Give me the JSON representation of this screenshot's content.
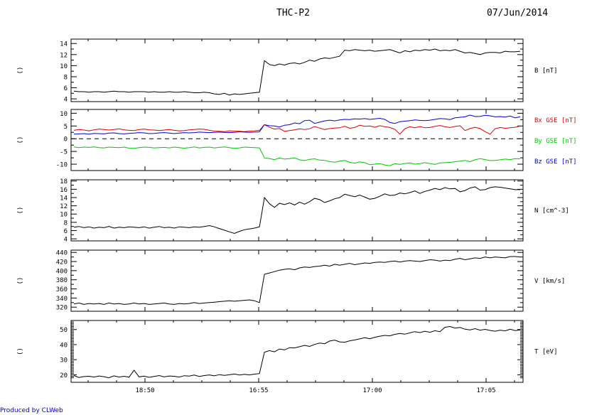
{
  "header": {
    "spacecraft": "THC-P2",
    "date": "07/Jun/2014"
  },
  "footer": {
    "credit": "Produced by CLWeb"
  },
  "colors": {
    "black": "#000000",
    "red": "#e00000",
    "green": "#00c800",
    "blue": "#0000e0",
    "credit": "#0000c0"
  },
  "x_axis": {
    "tick_labels": [
      "18:50",
      "16:55",
      "17:00",
      "17:05"
    ]
  },
  "chart_data": [
    {
      "type": "line",
      "ylabel": "B [nT]",
      "ylim": [
        3.5,
        14.8
      ],
      "yticks": [
        4,
        6,
        8,
        10,
        12,
        14
      ],
      "yticks_minor": [
        5,
        7,
        9,
        11,
        13
      ],
      "y_left_mark": "()",
      "series": [
        {
          "color": "#000000",
          "y": [
            5.4,
            5.3,
            5.3,
            5.2,
            5.3,
            5.3,
            5.2,
            5.3,
            5.4,
            5.3,
            5.3,
            5.2,
            5.3,
            5.3,
            5.3,
            5.2,
            5.3,
            5.2,
            5.2,
            5.3,
            5.2,
            5.2,
            5.3,
            5.2,
            5.1,
            5.1,
            5.2,
            5.1,
            4.9,
            4.8,
            5.0,
            4.7,
            4.9,
            4.8,
            4.9,
            5.0,
            5.1,
            5.2,
            10.9,
            10.2,
            10.0,
            10.3,
            10.1,
            10.4,
            10.5,
            10.3,
            10.6,
            11.0,
            10.8,
            11.2,
            11.4,
            11.3,
            11.5,
            11.7,
            12.8,
            12.7,
            12.9,
            12.8,
            12.7,
            12.8,
            12.6,
            12.7,
            12.8,
            12.9,
            12.6,
            12.3,
            12.7,
            12.5,
            12.8,
            12.7,
            12.9,
            12.8,
            13.0,
            12.7,
            12.8,
            12.7,
            12.9,
            12.6,
            12.3,
            12.4,
            12.2,
            12.0,
            12.3,
            12.4,
            12.4,
            12.3,
            12.6,
            12.5,
            12.5,
            12.6
          ]
        }
      ]
    },
    {
      "type": "line",
      "ylim": [
        -12.5,
        11.5
      ],
      "yticks": [
        -10,
        -5,
        0,
        5,
        10
      ],
      "yticks_minor": [
        -7.5,
        -2.5,
        2.5,
        7.5
      ],
      "zero_line": true,
      "y_left_mark": "()",
      "series": [
        {
          "name": "Bx GSE [nT]",
          "color": "#e00000",
          "y": [
            3.3,
            3.6,
            3.4,
            3.1,
            3.5,
            3.8,
            3.6,
            3.4,
            3.6,
            3.9,
            3.5,
            3.3,
            3.2,
            3.6,
            3.8,
            3.5,
            3.4,
            3.2,
            3.4,
            3.6,
            3.3,
            3.1,
            3.2,
            3.5,
            3.6,
            3.8,
            3.7,
            3.3,
            3.0,
            2.9,
            2.8,
            3.1,
            3.0,
            2.9,
            2.8,
            3.0,
            3.1,
            3.3,
            5.5,
            4.5,
            3.8,
            4.0,
            2.9,
            3.2,
            3.5,
            3.9,
            3.6,
            3.9,
            4.8,
            4.2,
            3.6,
            4.0,
            4.2,
            4.3,
            4.9,
            4.1,
            4.4,
            5.3,
            4.9,
            5.0,
            4.5,
            5.1,
            4.7,
            4.4,
            3.7,
            1.8,
            3.9,
            4.7,
            4.3,
            4.8,
            4.3,
            4.4,
            4.9,
            5.2,
            4.7,
            4.4,
            4.8,
            5.1,
            3.2,
            4.0,
            4.5,
            4.0,
            2.8,
            1.8,
            3.9,
            4.4,
            4.1,
            4.3,
            4.5,
            5.0
          ]
        },
        {
          "name": "By GSE [nT]",
          "color": "#00c800",
          "y": [
            -3.2,
            -3.5,
            -3.3,
            -3.4,
            -3.2,
            -3.5,
            -3.6,
            -3.3,
            -3.4,
            -3.5,
            -3.3,
            -3.7,
            -3.8,
            -3.5,
            -3.3,
            -3.4,
            -3.6,
            -3.5,
            -3.4,
            -3.6,
            -3.3,
            -3.5,
            -3.7,
            -3.5,
            -3.2,
            -3.6,
            -3.4,
            -3.3,
            -3.6,
            -3.4,
            -3.2,
            -3.5,
            -3.8,
            -3.6,
            -3.3,
            -3.4,
            -3.5,
            -3.6,
            -7.5,
            -7.8,
            -8.2,
            -7.6,
            -8.0,
            -7.8,
            -7.5,
            -8.3,
            -8.6,
            -8.1,
            -7.9,
            -8.4,
            -8.5,
            -9.0,
            -9.2,
            -8.8,
            -8.5,
            -9.3,
            -9.6,
            -9.1,
            -9.4,
            -10.2,
            -10.0,
            -9.8,
            -10.3,
            -10.6,
            -9.8,
            -10.1,
            -9.7,
            -9.5,
            -10.0,
            -9.8,
            -9.4,
            -9.8,
            -10.1,
            -9.5,
            -9.4,
            -9.3,
            -9.0,
            -8.8,
            -8.5,
            -9.0,
            -8.3,
            -7.8,
            -8.2,
            -8.6,
            -8.5,
            -8.3,
            -8.0,
            -8.2,
            -7.8,
            -7.9
          ]
        },
        {
          "name": "Bz GSE [nT]",
          "color": "#0000e0",
          "y": [
            1.8,
            1.9,
            2.0,
            1.8,
            2.1,
            2.0,
            1.9,
            2.2,
            2.3,
            2.0,
            1.9,
            2.1,
            2.2,
            2.4,
            2.3,
            2.0,
            2.1,
            2.3,
            2.4,
            2.2,
            2.0,
            2.2,
            2.4,
            2.3,
            2.4,
            2.6,
            2.5,
            2.4,
            2.5,
            2.6,
            2.5,
            2.4,
            2.5,
            2.7,
            2.6,
            2.5,
            2.6,
            2.7,
            5.5,
            5.1,
            5.0,
            4.6,
            5.3,
            5.5,
            6.2,
            5.9,
            7.1,
            7.3,
            6.0,
            6.5,
            7.0,
            7.3,
            7.0,
            7.4,
            7.6,
            7.5,
            7.8,
            7.7,
            7.9,
            7.6,
            7.8,
            8.0,
            7.6,
            6.4,
            6.0,
            6.7,
            6.9,
            7.1,
            7.4,
            7.2,
            7.1,
            7.3,
            7.6,
            7.9,
            7.8,
            7.5,
            8.2,
            8.4,
            8.6,
            9.3,
            8.7,
            8.8,
            9.2,
            9.0,
            8.6,
            8.7,
            8.5,
            8.9,
            8.2,
            8.6
          ]
        }
      ]
    },
    {
      "type": "line",
      "ylabel": "N [cm^-3]",
      "ylim": [
        3.5,
        18.3
      ],
      "yticks": [
        4,
        6,
        8,
        10,
        12,
        14,
        16,
        18
      ],
      "yticks_minor": [
        5,
        7,
        9,
        11,
        13,
        15,
        17
      ],
      "y_left_mark": "()",
      "series": [
        {
          "color": "#000000",
          "y": [
            6.8,
            7.0,
            6.7,
            6.9,
            6.6,
            6.8,
            6.7,
            7.0,
            6.6,
            6.8,
            6.7,
            6.9,
            6.8,
            6.7,
            6.9,
            6.6,
            6.8,
            7.0,
            6.7,
            6.8,
            6.6,
            6.9,
            6.8,
            6.7,
            6.9,
            6.8,
            7.0,
            7.2,
            6.9,
            6.5,
            6.1,
            5.7,
            5.3,
            5.8,
            6.2,
            6.4,
            6.6,
            6.9,
            14.0,
            12.5,
            11.6,
            12.6,
            12.3,
            12.7,
            12.2,
            12.9,
            12.4,
            13.0,
            13.8,
            13.5,
            12.8,
            13.2,
            13.7,
            14.0,
            14.8,
            14.5,
            14.2,
            14.6,
            14.1,
            13.6,
            13.8,
            14.3,
            14.9,
            14.5,
            14.6,
            15.1,
            14.9,
            15.2,
            15.6,
            15.0,
            15.5,
            15.8,
            16.2,
            15.9,
            16.4,
            16.1,
            16.2,
            15.4,
            15.7,
            16.3,
            16.6,
            15.8,
            15.9,
            16.4,
            16.6,
            16.5,
            16.3,
            16.1,
            15.9,
            15.9
          ]
        }
      ]
    },
    {
      "type": "line",
      "ylabel": "V [km/s]",
      "ylim": [
        311,
        445
      ],
      "yticks": [
        320,
        340,
        360,
        380,
        400,
        420,
        440
      ],
      "yticks_minor": [
        330,
        350,
        370,
        390,
        410,
        430
      ],
      "y_left_mark": "()",
      "series": [
        {
          "color": "#000000",
          "y": [
            327,
            329,
            326,
            328,
            327,
            328,
            326,
            329,
            327,
            328,
            326,
            327,
            329,
            327,
            328,
            326,
            327,
            328,
            329,
            327,
            326,
            328,
            327,
            328,
            330,
            328,
            329,
            330,
            331,
            332,
            333,
            334,
            333,
            334,
            335,
            336,
            334,
            330,
            392,
            395,
            398,
            401,
            403,
            404,
            402,
            406,
            408,
            407,
            409,
            410,
            412,
            410,
            414,
            412,
            414,
            416,
            413,
            415,
            417,
            416,
            418,
            419,
            418,
            420,
            421,
            419,
            421,
            422,
            421,
            420,
            422,
            424,
            423,
            421,
            423,
            422,
            425,
            427,
            424,
            426,
            428,
            427,
            430,
            428,
            430,
            429,
            428,
            431,
            431,
            430
          ]
        }
      ]
    },
    {
      "type": "line",
      "ylabel": "T [eV]",
      "ylim": [
        15,
        56
      ],
      "yticks": [
        20,
        30,
        40,
        50
      ],
      "yticks_minor": [
        18,
        19,
        21,
        22,
        23,
        24,
        25,
        26,
        27,
        28,
        29,
        31,
        32,
        33,
        34,
        35,
        36,
        37,
        38,
        39,
        41,
        42,
        43,
        44,
        45,
        46,
        47,
        48,
        49,
        51,
        52,
        53,
        54,
        55
      ],
      "y_left_mark": "()",
      "series": [
        {
          "color": "#000000",
          "y": [
            19.5,
            18.2,
            18.8,
            19.0,
            18.5,
            19.2,
            18.7,
            18.0,
            19.3,
            18.5,
            19.0,
            18.4,
            23.0,
            18.6,
            19.1,
            18.3,
            18.9,
            19.5,
            18.6,
            19.2,
            19.0,
            18.5,
            19.4,
            19.1,
            19.8,
            18.9,
            19.5,
            19.9,
            19.3,
            20.1,
            19.6,
            20.0,
            20.5,
            19.8,
            20.3,
            19.9,
            20.4,
            20.8,
            35.0,
            36.0,
            35.2,
            37.1,
            36.5,
            38.0,
            37.8,
            38.6,
            39.5,
            38.8,
            40.1,
            41.0,
            40.6,
            42.4,
            43.0,
            41.8,
            41.6,
            42.5,
            43.1,
            43.8,
            44.6,
            43.9,
            44.9,
            45.6,
            46.1,
            45.8,
            46.8,
            47.4,
            46.9,
            47.8,
            48.6,
            48.0,
            48.9,
            48.2,
            49.2,
            48.6,
            51.5,
            52.0,
            50.9,
            51.4,
            50.2,
            49.8,
            50.6,
            49.6,
            50.1,
            49.4,
            48.9,
            49.6,
            49.1,
            50.2,
            49.3,
            49.8
          ]
        }
      ]
    }
  ]
}
